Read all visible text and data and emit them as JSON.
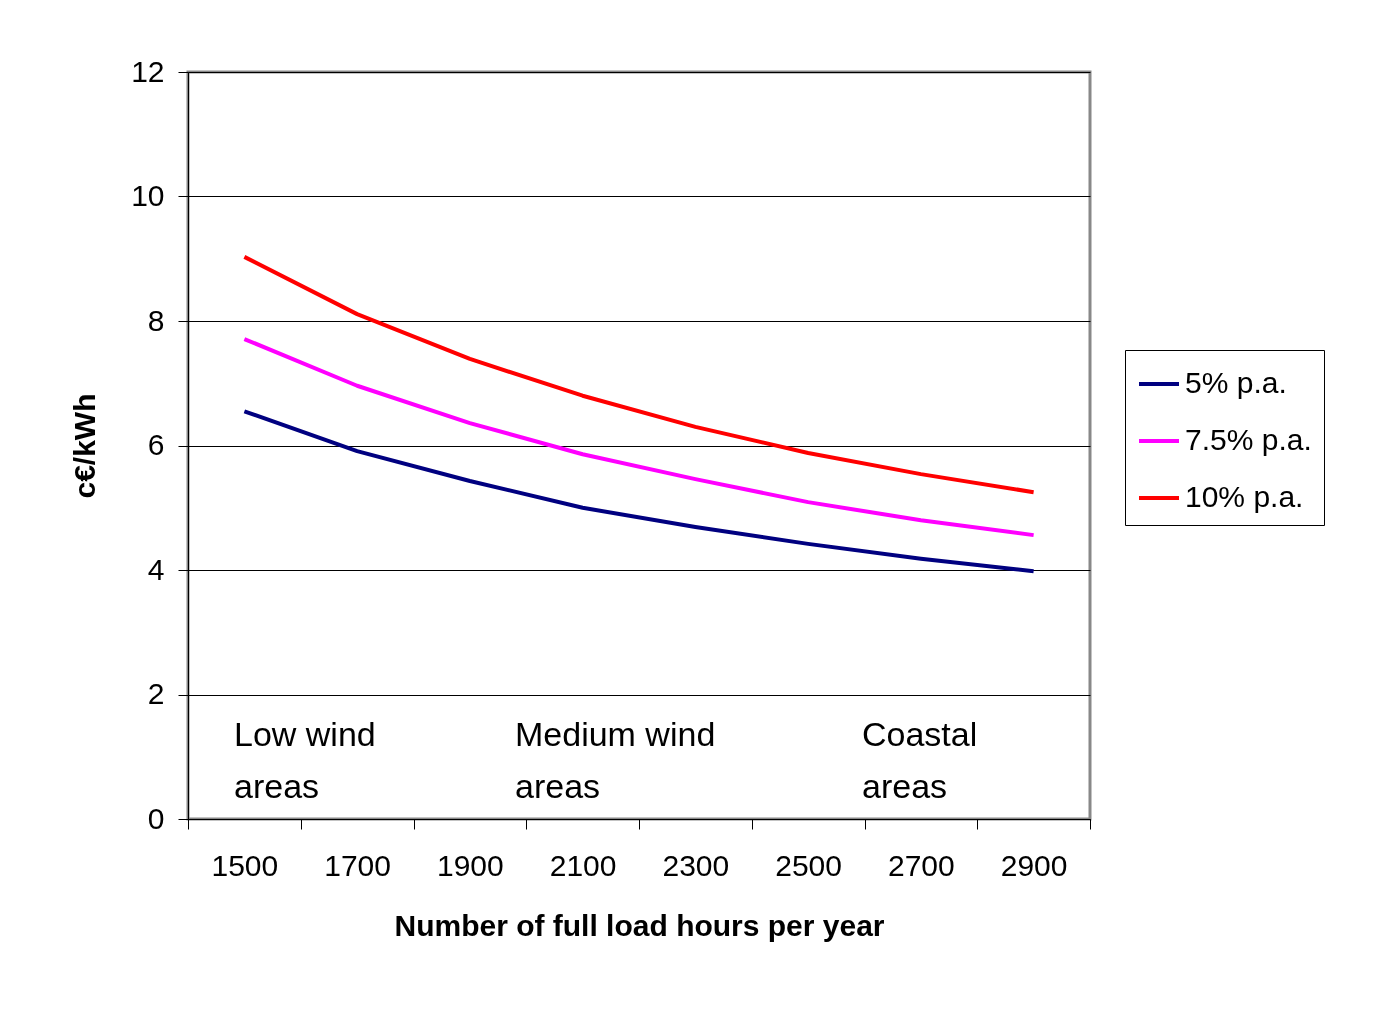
{
  "chart_data": {
    "type": "line",
    "xlabel": "Number of full load hours per year",
    "ylabel": "c€/kWh",
    "categories": [
      "1500",
      "1700",
      "1900",
      "2100",
      "2300",
      "2500",
      "2700",
      "2900"
    ],
    "series": [
      {
        "name": "5% p.a.",
        "color": "#000080",
        "values": [
          6.55,
          5.91,
          5.43,
          5.0,
          4.69,
          4.42,
          4.18,
          3.98
        ]
      },
      {
        "name": "7.5% p.a.",
        "color": "#ff00ff",
        "values": [
          7.71,
          6.96,
          6.36,
          5.86,
          5.46,
          5.09,
          4.8,
          4.56
        ]
      },
      {
        "name": "10% p.a.",
        "color": "#ff0000",
        "values": [
          9.03,
          8.11,
          7.39,
          6.8,
          6.3,
          5.88,
          5.54,
          5.25
        ]
      }
    ],
    "ylim": [
      0,
      12
    ],
    "yticks": [
      0,
      2,
      4,
      6,
      8,
      10,
      12
    ],
    "grid": "y",
    "legend": "right",
    "annotations": [
      "Low wind areas",
      "Medium wind areas",
      "Coastal areas"
    ]
  }
}
